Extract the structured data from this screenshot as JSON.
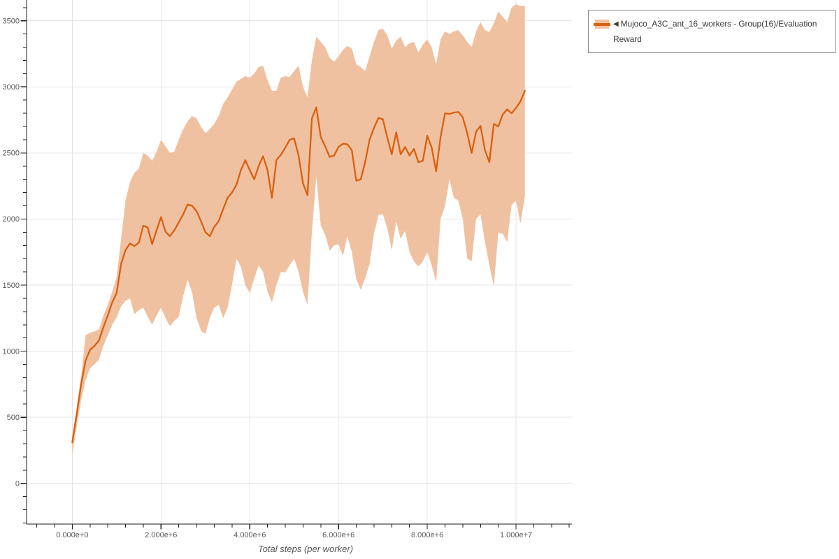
{
  "legend": {
    "collapse_icon": "◀",
    "series_label": "Mujoco_A3C_ant_16_workers - Group(16)/Evaluation Reward"
  },
  "axes": {
    "x_label": "Total steps (per worker)",
    "x_tick_labels": [
      "0.000e+0",
      "2.000e+6",
      "4.000e+6",
      "6.000e+6",
      "8.000e+6",
      "1.000e+7"
    ],
    "x_tick_values_millions": [
      0,
      2,
      4,
      6,
      8,
      10
    ],
    "y_tick_labels": [
      "0",
      "500",
      "1000",
      "1500",
      "2000",
      "2500",
      "3000",
      "3500"
    ],
    "y_tick_values": [
      0,
      500,
      1000,
      1500,
      2000,
      2500,
      3000,
      3500
    ]
  },
  "colors": {
    "line": "#d9600e",
    "band": "#f0c1a0",
    "grid": "#e4e4e4",
    "axis": "#1c1c1c",
    "tick_label": "#595959",
    "axis_title": "#555555",
    "legend_text": "#3c3c3c",
    "legend_border": "#8a8a8a"
  },
  "chart_data": {
    "type": "line",
    "title": "",
    "xlabel": "Total steps (per worker)",
    "ylabel": "",
    "x_unit": "millions of steps",
    "xlim_millions": [
      -1.03,
      11.26
    ],
    "ylim": [
      -308,
      3657
    ],
    "grid": true,
    "legend_position": "upper right",
    "x_minor_step_millions": 0.4,
    "y_minor_step": 100,
    "x_millions": [
      0.0,
      0.1,
      0.2,
      0.3,
      0.4,
      0.5,
      0.6,
      0.7,
      0.8,
      0.9,
      1.0,
      1.1,
      1.2,
      1.3,
      1.4,
      1.5,
      1.6,
      1.7,
      1.8,
      1.9,
      2.0,
      2.1,
      2.2,
      2.3,
      2.4,
      2.5,
      2.6,
      2.7,
      2.8,
      2.9,
      3.0,
      3.1,
      3.2,
      3.3,
      3.4,
      3.5,
      3.6,
      3.7,
      3.8,
      3.9,
      4.0,
      4.1,
      4.2,
      4.3,
      4.4,
      4.5,
      4.6,
      4.7,
      4.8,
      4.9,
      5.0,
      5.1,
      5.2,
      5.3,
      5.4,
      5.5,
      5.6,
      5.7,
      5.8,
      5.9,
      6.0,
      6.1,
      6.2,
      6.3,
      6.4,
      6.5,
      6.6,
      6.7,
      6.8,
      6.9,
      7.0,
      7.1,
      7.2,
      7.3,
      7.4,
      7.5,
      7.6,
      7.7,
      7.8,
      7.9,
      8.0,
      8.1,
      8.2,
      8.3,
      8.4,
      8.5,
      8.6,
      8.7,
      8.8,
      8.9,
      9.0,
      9.1,
      9.2,
      9.3,
      9.4,
      9.5,
      9.6,
      9.7,
      9.8,
      9.9,
      10.0,
      10.1,
      10.2
    ],
    "series": [
      {
        "name": "Mujoco_A3C_ant_16_workers - Group(16)/Evaluation Reward",
        "mean": [
          310,
          520,
          750,
          930,
          1010,
          1040,
          1080,
          1180,
          1270,
          1370,
          1440,
          1660,
          1765,
          1815,
          1795,
          1820,
          1950,
          1935,
          1810,
          1915,
          2015,
          1905,
          1870,
          1915,
          1975,
          2035,
          2110,
          2100,
          2060,
          1985,
          1900,
          1870,
          1940,
          1985,
          2075,
          2160,
          2200,
          2260,
          2370,
          2445,
          2370,
          2300,
          2400,
          2475,
          2370,
          2160,
          2445,
          2485,
          2540,
          2600,
          2610,
          2480,
          2270,
          2180,
          2760,
          2845,
          2620,
          2550,
          2470,
          2480,
          2545,
          2570,
          2565,
          2520,
          2290,
          2300,
          2430,
          2600,
          2690,
          2765,
          2755,
          2615,
          2490,
          2655,
          2490,
          2545,
          2480,
          2530,
          2430,
          2440,
          2630,
          2540,
          2360,
          2620,
          2800,
          2795,
          2805,
          2810,
          2770,
          2650,
          2500,
          2660,
          2705,
          2520,
          2430,
          2720,
          2700,
          2790,
          2830,
          2800,
          2840,
          2890,
          2970
        ],
        "upper": [
          360,
          580,
          810,
          1120,
          1140,
          1150,
          1165,
          1270,
          1350,
          1450,
          1560,
          1850,
          2140,
          2280,
          2350,
          2380,
          2500,
          2480,
          2440,
          2510,
          2600,
          2550,
          2500,
          2510,
          2600,
          2680,
          2740,
          2780,
          2760,
          2700,
          2650,
          2680,
          2720,
          2780,
          2870,
          2920,
          2980,
          3040,
          3060,
          3080,
          3070,
          3100,
          3150,
          3160,
          3050,
          2970,
          2970,
          3070,
          3080,
          3075,
          3120,
          3160,
          3000,
          2920,
          3200,
          3380,
          3340,
          3300,
          3220,
          3190,
          3230,
          3280,
          3310,
          3290,
          3170,
          3150,
          3120,
          3230,
          3340,
          3430,
          3440,
          3390,
          3290,
          3350,
          3380,
          3300,
          3330,
          3340,
          3260,
          3320,
          3360,
          3300,
          3170,
          3360,
          3420,
          3400,
          3420,
          3430,
          3390,
          3340,
          3300,
          3420,
          3490,
          3430,
          3415,
          3480,
          3570,
          3530,
          3490,
          3600,
          3625,
          3610,
          3615
        ],
        "lower": [
          215,
          430,
          630,
          780,
          870,
          900,
          935,
          1040,
          1120,
          1200,
          1255,
          1340,
          1380,
          1400,
          1280,
          1310,
          1330,
          1260,
          1200,
          1270,
          1330,
          1250,
          1190,
          1230,
          1260,
          1420,
          1540,
          1445,
          1250,
          1155,
          1130,
          1250,
          1330,
          1350,
          1250,
          1330,
          1500,
          1700,
          1640,
          1500,
          1440,
          1550,
          1650,
          1600,
          1450,
          1370,
          1500,
          1600,
          1595,
          1650,
          1700,
          1600,
          1450,
          1350,
          1900,
          2320,
          1950,
          1880,
          1760,
          1800,
          1810,
          1720,
          1870,
          1750,
          1545,
          1465,
          1550,
          1660,
          1890,
          2030,
          2035,
          1930,
          1765,
          1980,
          1850,
          1910,
          1750,
          1680,
          1640,
          1680,
          1750,
          1650,
          1520,
          2000,
          2100,
          2300,
          2160,
          2140,
          2000,
          1700,
          1680,
          2000,
          2035,
          1825,
          1650,
          1490,
          1895,
          1890,
          1825,
          2105,
          2140,
          1965,
          2175
        ]
      }
    ]
  }
}
